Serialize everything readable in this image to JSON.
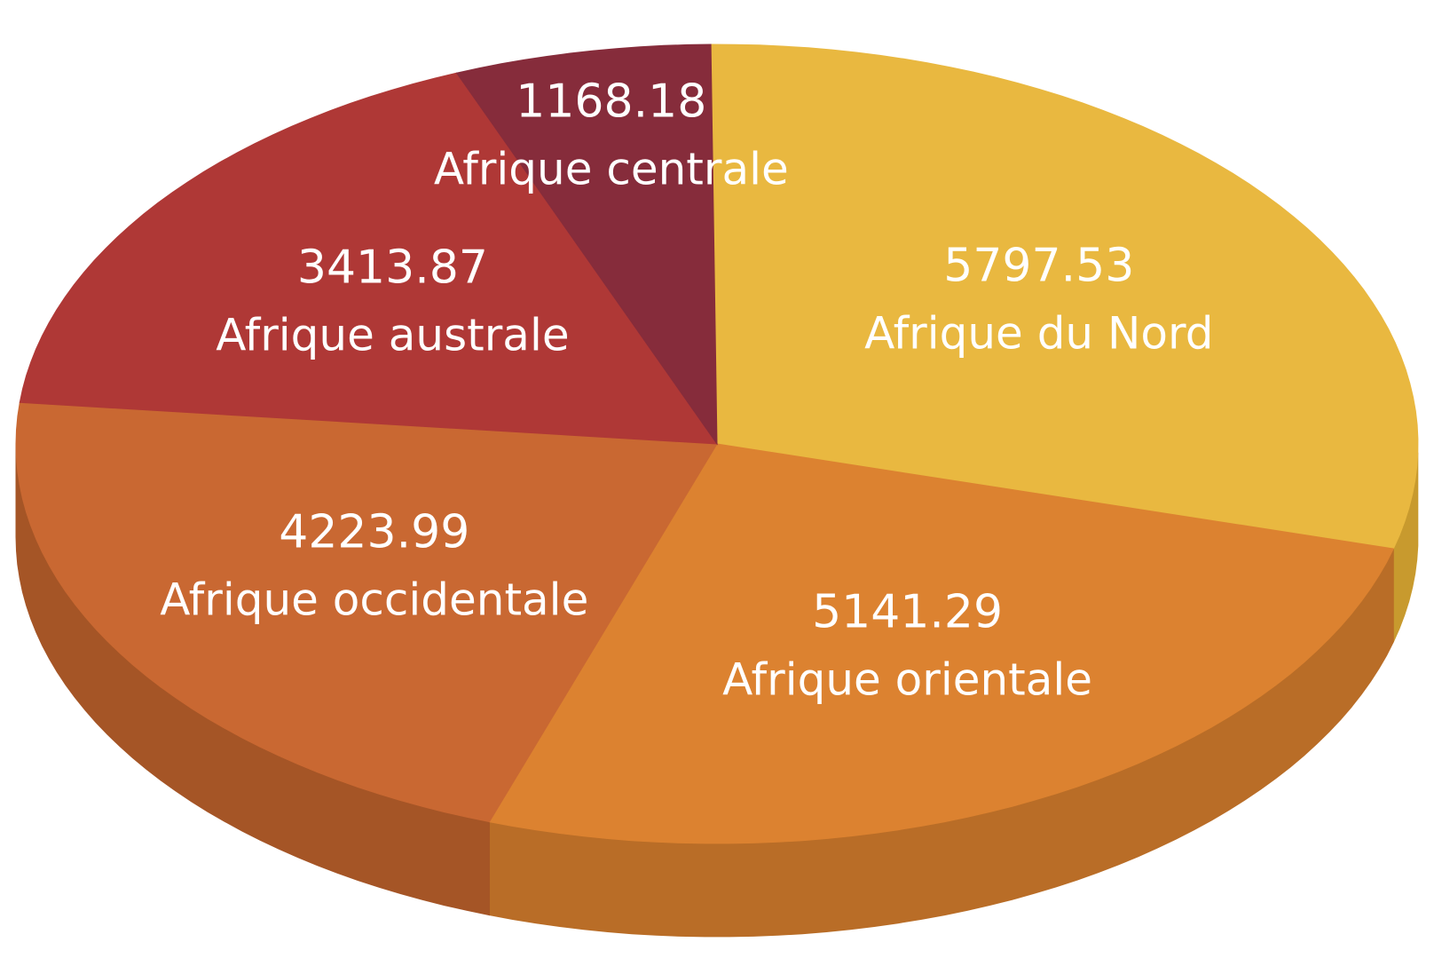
{
  "chart_data": {
    "type": "pie",
    "style": "3d",
    "title": "",
    "slices": [
      {
        "label": "Afrique du Nord",
        "value": 5797.53,
        "value_label": "5797.53",
        "color": "#e9b840",
        "side_color": "#c89a2e"
      },
      {
        "label": "Afrique orientale",
        "value": 5141.29,
        "value_label": "5141.29",
        "color": "#dc8230",
        "side_color": "#b96d27"
      },
      {
        "label": "Afrique occidentale",
        "value": 4223.99,
        "value_label": "4223.99",
        "color": "#c96832",
        "side_color": "#a55526"
      },
      {
        "label": "Afrique australe",
        "value": 3413.87,
        "value_label": "3413.87",
        "color": "#af3836",
        "side_color": "#8c2c2a"
      },
      {
        "label": "Afrique centrale",
        "value": 1168.18,
        "value_label": "1168.18",
        "color": "#862c3b",
        "side_color": "#6a2230"
      }
    ]
  }
}
